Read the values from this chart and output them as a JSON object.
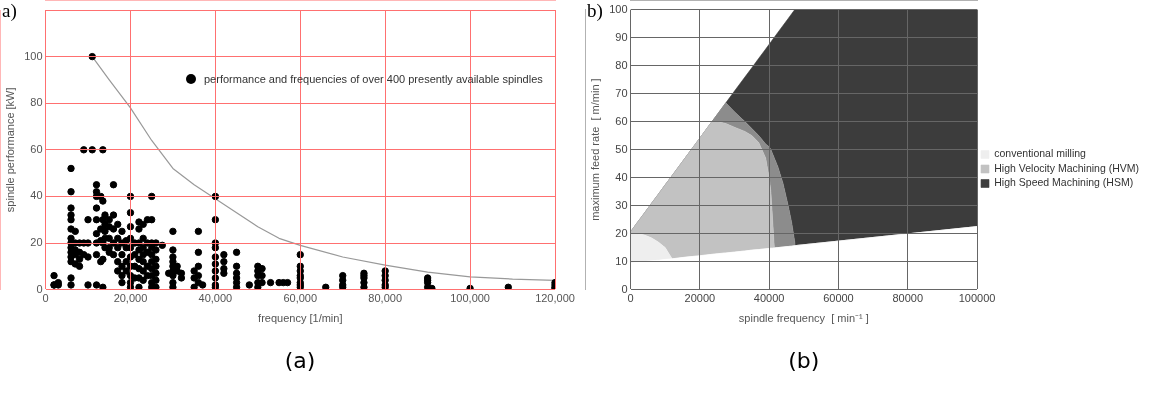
{
  "chart_data": [
    {
      "type": "scatter",
      "title": "a)",
      "xlabel": "frequency [1/min]",
      "ylabel": "spindle performance [kW]",
      "annotations": [
        "(a)"
      ],
      "xlim": [
        0,
        120000
      ],
      "xticks": [
        0,
        {
          "value": 20000,
          "label": "20,000"
        },
        {
          "value": 40000,
          "label": "40,000"
        },
        {
          "value": 60000,
          "label": "60,000"
        },
        {
          "value": 80000,
          "label": "80,000"
        },
        {
          "value": 100000,
          "label": "100,000"
        },
        {
          "value": 120000,
          "label": "120,000"
        }
      ],
      "ylim": [
        0,
        120
      ],
      "yticks": [
        0,
        20,
        40,
        60,
        80,
        100,
        {
          "value": 120,
          "label": null
        }
      ],
      "grid": true,
      "legend": "top right",
      "marker": "circle",
      "series": [
        {
          "name": "performance and frequencies of over 400 presently available spindles",
          "color": "#000000",
          "x": [
            2000,
            2000,
            2000,
            3000,
            3000,
            6000,
            6000,
            6000,
            6000,
            6000,
            6000,
            6000,
            6000,
            6000,
            6000,
            6000,
            6000,
            6000,
            6000,
            7000,
            7000,
            7000,
            7000,
            7000,
            8000,
            8000,
            8000,
            8000,
            9000,
            9000,
            9000,
            10000,
            10000,
            10000,
            10000,
            11000,
            11000,
            12000,
            12000,
            12000,
            12000,
            12000,
            12000,
            12000,
            12000,
            12000,
            13000,
            13000,
            13000,
            13000,
            13500,
            13500,
            13500,
            13500,
            13500,
            13500,
            13500,
            14000,
            14000,
            14000,
            14000,
            14000,
            15000,
            15000,
            15000,
            15000,
            15000,
            16000,
            16000,
            16000,
            16000,
            16000,
            17000,
            17000,
            17000,
            17000,
            17000,
            18000,
            18000,
            18000,
            18000,
            18000,
            18000,
            19000,
            19000,
            19000,
            19000,
            20000,
            20000,
            20000,
            20000,
            20000,
            20000,
            20000,
            20000,
            20000,
            20000,
            21000,
            21000,
            21000,
            21000,
            22000,
            22000,
            22000,
            22000,
            22000,
            22000,
            22000,
            22000,
            23000,
            23000,
            23000,
            23000,
            23000,
            23000,
            23000,
            24000,
            24000,
            24000,
            24000,
            24000,
            25000,
            25000,
            25000,
            25000,
            25000,
            25000,
            25000,
            25000,
            25000,
            25000,
            26000,
            26000,
            26000,
            26000,
            26000,
            26000,
            26000,
            27500,
            29000,
            30000,
            30000,
            30000,
            30000,
            30000,
            30000,
            30000,
            30000,
            30000,
            31000,
            31000,
            32000,
            32000,
            35000,
            35000,
            35000,
            36000,
            36000,
            36000,
            36000,
            36000,
            37000,
            40000,
            40000,
            40000,
            40000,
            40000,
            40000,
            40000,
            40000,
            40000,
            40000,
            42000,
            42000,
            42000,
            42000,
            45000,
            45000,
            45000,
            45000,
            45000,
            45000,
            48000,
            50000,
            50000,
            50000,
            50000,
            50000,
            51000,
            51000,
            51000,
            53000,
            55000,
            56000,
            57000,
            60000,
            60000,
            60000,
            60000,
            60000,
            60000,
            60000,
            60000,
            66000,
            70000,
            70000,
            70000,
            70000,
            75000,
            75000,
            75000,
            75000,
            75000,
            80000,
            80000,
            80000,
            80000,
            80000,
            90000,
            90000,
            90000,
            90000,
            91000,
            100000,
            109000,
            120000,
            120000,
            120000,
            120000
          ],
          "values": [
            6,
            2,
            2,
            3,
            2,
            52,
            42,
            35,
            32,
            30,
            26,
            22,
            20,
            18,
            16,
            14,
            12,
            5,
            2,
            25,
            20,
            17,
            15,
            11,
            20,
            16,
            13,
            10,
            60,
            20,
            15,
            30,
            20,
            14,
            2,
            60,
            100,
            45,
            42,
            40,
            35,
            30,
            24,
            20,
            15,
            2,
            40,
            26,
            21,
            12,
            60,
            38,
            30,
            26,
            20,
            13,
            1,
            32,
            28,
            25,
            22,
            18,
            30,
            27,
            22,
            18,
            16,
            45,
            32,
            26,
            20,
            15,
            28,
            22,
            18,
            12,
            8,
            25,
            20,
            15,
            10,
            6,
            3,
            21,
            18,
            12,
            8,
            40,
            33,
            27,
            22,
            18,
            14,
            10,
            6,
            3,
            1,
            20,
            15,
            10,
            5,
            29,
            26,
            20,
            17,
            13,
            9,
            5,
            1,
            28,
            22,
            18,
            15,
            12,
            8,
            4,
            30,
            20,
            16,
            10,
            6,
            40,
            30,
            20,
            18,
            15,
            12,
            9,
            6,
            3,
            1,
            20,
            17,
            13,
            10,
            7,
            4,
            1,
            19,
            7,
            25,
            17,
            14,
            12,
            10,
            8,
            6,
            3,
            1,
            10,
            8,
            7,
            5,
            8,
            5,
            1,
            25,
            16,
            10,
            6,
            3,
            2,
            40,
            30,
            20,
            18,
            14,
            11,
            8,
            5,
            2,
            1,
            15,
            12,
            9,
            7,
            16,
            10,
            7,
            5,
            3,
            1,
            2,
            10,
            8,
            6,
            3,
            1,
            9,
            6,
            3,
            3,
            3,
            3,
            3,
            15,
            10,
            8,
            6,
            5,
            3,
            2,
            1,
            1,
            6,
            4,
            2,
            1,
            7,
            6,
            5,
            3,
            1,
            8,
            6,
            4,
            2,
            1,
            5,
            4,
            3,
            1,
            0.5,
            0.5,
            1,
            3,
            2,
            1,
            0.5
          ]
        },
        {
          "type": "line",
          "color": "#999999",
          "marker": "none",
          "x": [
            11000,
            15000,
            20000,
            25000,
            30000,
            35000,
            40000,
            45000,
            50000,
            55000,
            60000,
            70000,
            80000,
            90000,
            100000,
            110000,
            120000
          ],
          "values": [
            100,
            90,
            78,
            64,
            52,
            45,
            39,
            33,
            27,
            22,
            19,
            14,
            10.5,
            7.5,
            5.5,
            4.5,
            4
          ]
        }
      ]
    },
    {
      "type": "area",
      "title": "b)",
      "xlabel": "spindle frequency  [ min⁻¹ ]",
      "ylabel": "maximum feed rate  [ m/min ]",
      "annotations": [
        "(b)"
      ],
      "xlim": [
        0,
        100000
      ],
      "xticks": [
        0,
        20000,
        40000,
        60000,
        80000,
        100000
      ],
      "ylim": [
        0,
        100
      ],
      "yticks": [
        0,
        10,
        20,
        30,
        40,
        50,
        60,
        70,
        80,
        90,
        100
      ],
      "grid": true,
      "legend": "right",
      "stacked": true,
      "x": [
        0,
        2000,
        4000,
        6000,
        8000,
        10000,
        12000,
        16000,
        20000,
        23500,
        25000,
        27500,
        30000,
        33000,
        35000,
        37000,
        39000,
        40000,
        40500,
        41000,
        41500,
        42500,
        44000,
        45500,
        46500,
        47400,
        47500,
        100000
      ],
      "series": [
        {
          "color": "#ffffff",
          "values": [
            9.5,
            9.8,
            10,
            10.3,
            10.5,
            10.8,
            11,
            11.6,
            12.1,
            12.6,
            12.8,
            13.1,
            13.4,
            13.8,
            14.1,
            14.3,
            14.6,
            14.7,
            14.8,
            14.8,
            14.9,
            15,
            15.2,
            15.4,
            15.5,
            15.7,
            15.7,
            22.5
          ]
        },
        {
          "name": "conventional milling",
          "color": "#eeeeee",
          "values": [
            10.5,
            10.2,
            9.5,
            8.2,
            6.5,
            4.2,
            0,
            0,
            0,
            0,
            0,
            0,
            0,
            0,
            0,
            0,
            0,
            0,
            0,
            0,
            0,
            0,
            0,
            0,
            0,
            0,
            0,
            0
          ]
        },
        {
          "name": "High Velocity Machining (HVM)",
          "color": "#c2c2c2",
          "values": [
            0.6,
            4,
            7.8,
            12.2,
            17,
            22.4,
            29.7,
            35.8,
            42,
            47.4,
            47.2,
            46.2,
            44.6,
            42.7,
            40.9,
            38.2,
            32.4,
            25.3,
            20.2,
            10.2,
            0,
            0,
            0,
            0,
            0,
            0,
            0,
            0
          ]
        },
        {
          "color": "#8c8c8c",
          "values": [
            0,
            0,
            0,
            0,
            0,
            0,
            0,
            0,
            0,
            0,
            2.5,
            7.4,
            5.5,
            3.5,
            2.5,
            2.5,
            5,
            11,
            15,
            23.5,
            32.1,
            29,
            22.8,
            14.6,
            8.5,
            1.3,
            0,
            0
          ]
        },
        {
          "name": "High Speed Machining (HSM)",
          "color": "#3c3c3c",
          "values": [
            0,
            0,
            0,
            0,
            0,
            0,
            0,
            0,
            0,
            0,
            0,
            0,
            7.4,
            15.9,
            21.7,
            27.6,
            33.9,
            36.6,
            38.4,
            40.8,
            43.1,
            47.8,
            56.3,
            66.8,
            74.5,
            83,
            84.3,
            77.5
          ]
        }
      ]
    }
  ]
}
